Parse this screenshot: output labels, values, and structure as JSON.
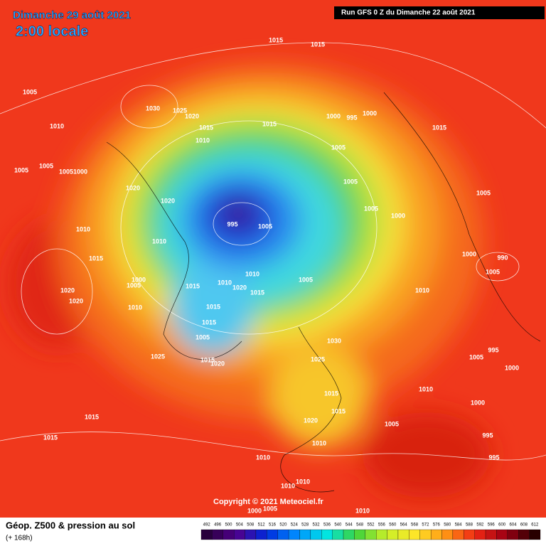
{
  "header": {
    "date": "Dimanche 29 août 2021",
    "time": "2:00 locale",
    "run": "Run GFS 0 Z du Dimanche 22 août 2021"
  },
  "copyright": "Copyright © 2021 Meteociel.fr",
  "footer": {
    "title": "Géop. Z500 & pression au sol",
    "lead": "(+ 168h)"
  },
  "scale": [
    492,
    496,
    500,
    504,
    508,
    512,
    516,
    520,
    524,
    528,
    532,
    536,
    540,
    544,
    548,
    552,
    556,
    560,
    564,
    568,
    572,
    576,
    580,
    584,
    588,
    592,
    596,
    600,
    604,
    608,
    612
  ],
  "isobar_labels": [
    "1015",
    "1015",
    "1005",
    "1030",
    "1025",
    "1020",
    "1015",
    "1000",
    "995",
    "1000",
    "1010",
    "1015",
    "1010",
    "1015",
    "1005",
    "1005",
    "1005",
    "1005",
    "1000",
    "1005",
    "1020",
    "1005",
    "1020",
    "1005",
    "1000",
    "995",
    "1005",
    "1010",
    "1010",
    "1015",
    "1000",
    "990",
    "1005",
    "1010",
    "1000",
    "1005",
    "1015",
    "1010",
    "1020",
    "1015",
    "1005",
    "1010",
    "1020",
    "1020",
    "1010",
    "1015",
    "1015",
    "1005",
    "1030",
    "995",
    "1025",
    "1025",
    "1015",
    "1020",
    "1005",
    "1000",
    "1015",
    "1010",
    "1000",
    "1015",
    "1015",
    "1020",
    "1005",
    "1015",
    "1010",
    "995",
    "1010",
    "995",
    "1010",
    "1010",
    "1005",
    "1000",
    "1010"
  ]
}
